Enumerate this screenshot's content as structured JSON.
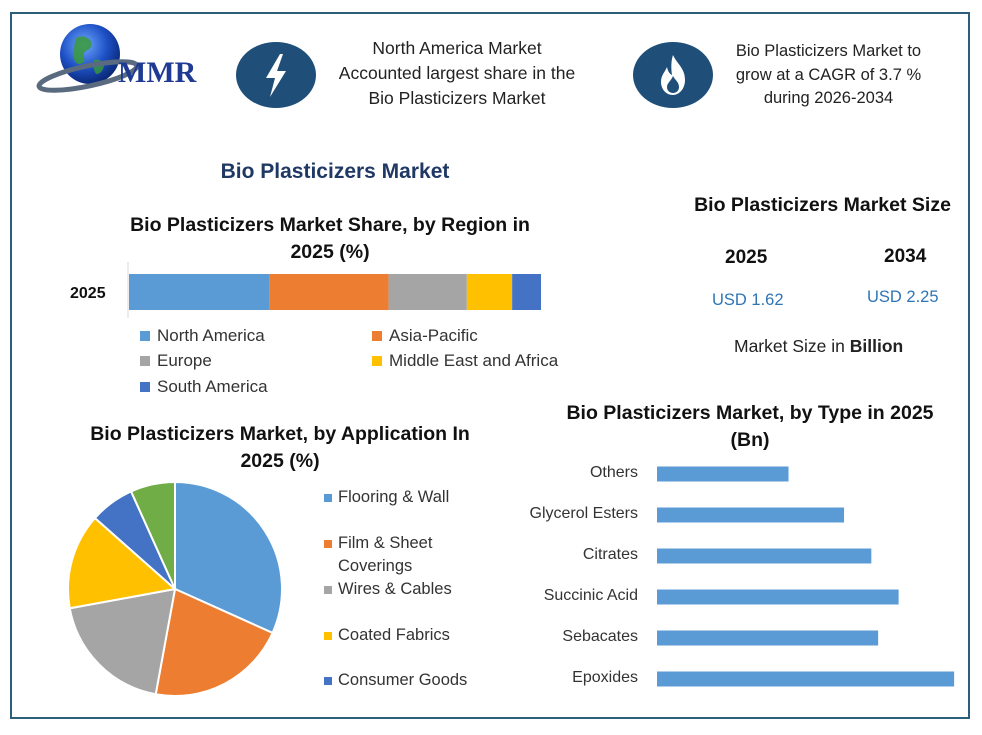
{
  "logo": {
    "text": "MMR"
  },
  "highlights": [
    {
      "icon": "lightning-icon",
      "text": [
        "North America Market",
        "Accounted largest share in the",
        "Bio Plasticizers Market"
      ]
    },
    {
      "icon": "flame-icon",
      "text": [
        "Bio Plasticizers Market to",
        "grow at a CAGR of 3.7 %",
        "during 2026-2034"
      ]
    }
  ],
  "main_title": "Bio Plasticizers Market",
  "market_size": {
    "title": "Bio Plasticizers Market Size",
    "years": [
      "2025",
      "2034"
    ],
    "values": [
      "USD 1.62",
      "USD 2.25"
    ],
    "unit_prefix": "Market Size in ",
    "unit_bold": "Billion"
  },
  "colors": {
    "blue": "#5b9bd5",
    "orange": "#ed7d31",
    "gray": "#a5a5a5",
    "yellow": "#ffc000",
    "darkblue": "#4472c4",
    "green": "#70ad47",
    "navy": "#1f4e79"
  },
  "chart_data": [
    {
      "type": "bar",
      "orientation": "horizontal-stacked",
      "title": [
        "Bio Plasticizers Market Share, by Region in",
        "2025 (%)"
      ],
      "categories": [
        "2025"
      ],
      "series": [
        {
          "name": "North America",
          "values": [
            34
          ]
        },
        {
          "name": "Asia-Pacific",
          "values": [
            29
          ]
        },
        {
          "name": "Europe",
          "values": [
            19
          ]
        },
        {
          "name": "Middle East and Africa",
          "values": [
            11
          ]
        },
        {
          "name": "South America",
          "values": [
            7
          ]
        }
      ],
      "xlim": [
        0,
        100
      ],
      "legend": "bottom"
    },
    {
      "type": "pie",
      "title": [
        "Bio Plasticizers Market, by Application In",
        "2025 (%)"
      ],
      "labels": [
        "Flooring & Wall",
        "Film & Sheet Coverings",
        "Wires & Cables",
        "Coated Fabrics",
        "Consumer Goods",
        ""
      ],
      "legend_lines": [
        [
          "Flooring & Wall"
        ],
        [
          "Film & Sheet",
          "Coverings"
        ],
        [
          "Wires & Cables"
        ],
        [
          "Coated Fabrics"
        ],
        [
          "Consumer Goods"
        ]
      ],
      "values": [
        33,
        22,
        20,
        15,
        7,
        7
      ],
      "legend": "right"
    },
    {
      "type": "bar",
      "orientation": "horizontal",
      "title": [
        "Bio Plasticizers Market, by Type in 2025",
        "(Bn)"
      ],
      "categories": [
        "Others",
        "Glycerol Esters",
        "Citrates",
        "Succinic Acid",
        "Sebacates",
        "Epoxides"
      ],
      "values": [
        0.135,
        0.192,
        0.22,
        0.248,
        0.227,
        0.305
      ],
      "xlim": [
        0,
        0.31
      ],
      "grid": false,
      "legend": "none"
    }
  ]
}
